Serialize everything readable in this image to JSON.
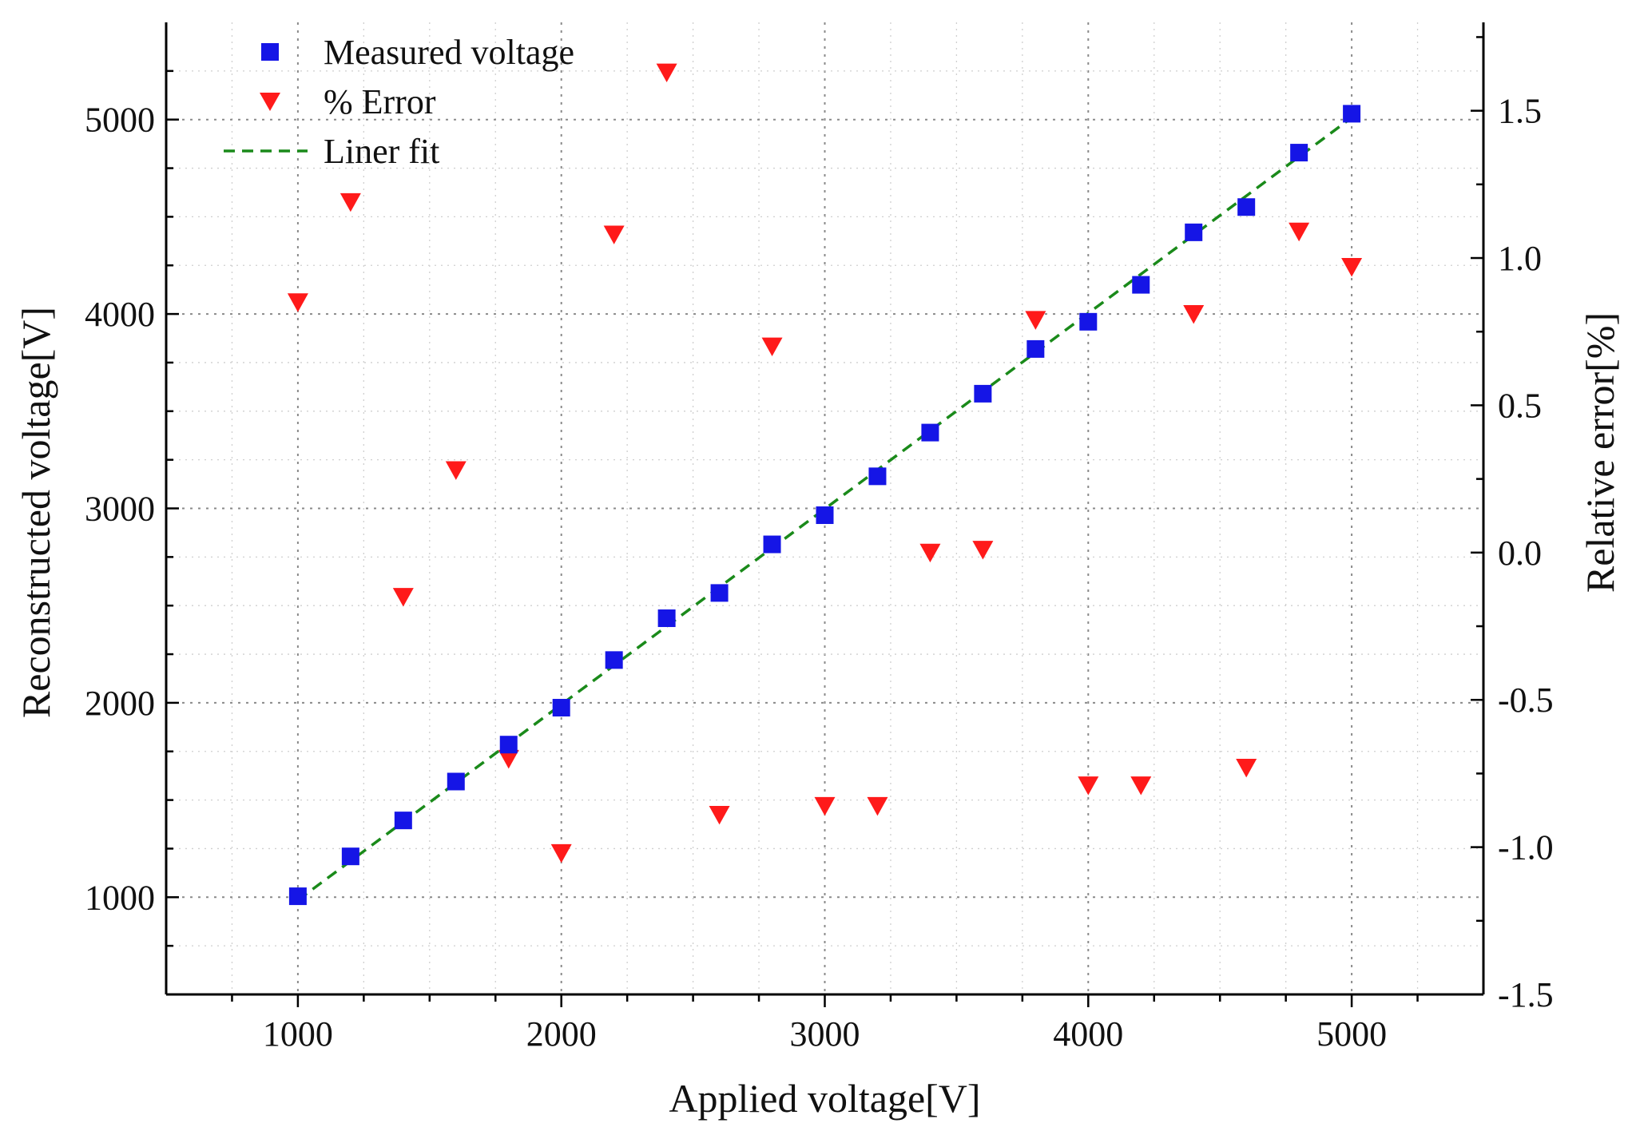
{
  "chart_data": {
    "type": "scatter",
    "xlabel": "Applied voltage[V]",
    "ylabel": "Reconstructed voltage[V]",
    "y2label": "Relative error[%]",
    "xlim": [
      500,
      5500
    ],
    "ylim": [
      500,
      5500
    ],
    "y2lim": [
      -1.5,
      1.8
    ],
    "x_ticks": [
      "1000",
      "2000",
      "3000",
      "4000",
      "5000"
    ],
    "y_ticks": [
      "1000",
      "2000",
      "3000",
      "4000",
      "5000"
    ],
    "y2_ticks": [
      "-1.5",
      "-1.0",
      "-0.5",
      "0.0",
      "0.5",
      "1.0",
      "1.5"
    ],
    "grid": true,
    "legend_position": "top-left",
    "x": [
      1000,
      1200,
      1400,
      1600,
      1800,
      2000,
      2200,
      2400,
      2600,
      2800,
      3000,
      3200,
      3400,
      3600,
      3800,
      4000,
      4200,
      4400,
      4600,
      4800,
      5000
    ],
    "series": [
      {
        "name": "Measured voltage",
        "axis": "left",
        "marker": "square",
        "color": "#1515e6",
        "values": [
          1005,
          1210,
          1395,
          1595,
          1785,
          1975,
          2220,
          2435,
          2565,
          2815,
          2965,
          3165,
          3390,
          3590,
          3820,
          3960,
          4150,
          4420,
          4550,
          4830,
          5030
        ]
      },
      {
        "name": "% Error",
        "axis": "right",
        "marker": "triangle-down",
        "color": "#ff1a1a",
        "values": [
          0.85,
          1.19,
          -0.15,
          0.28,
          -0.7,
          -1.02,
          1.08,
          1.63,
          -0.89,
          0.7,
          -0.86,
          -0.86,
          0.0,
          0.01,
          0.79,
          -0.79,
          -0.79,
          0.81,
          -0.73,
          1.09,
          0.97
        ]
      },
      {
        "name": "Liner fit",
        "axis": "left",
        "line_style": "dashed",
        "color": "#1a8a1a",
        "x": [
          1000,
          5000
        ],
        "values": [
          985,
          5010
        ]
      }
    ]
  }
}
